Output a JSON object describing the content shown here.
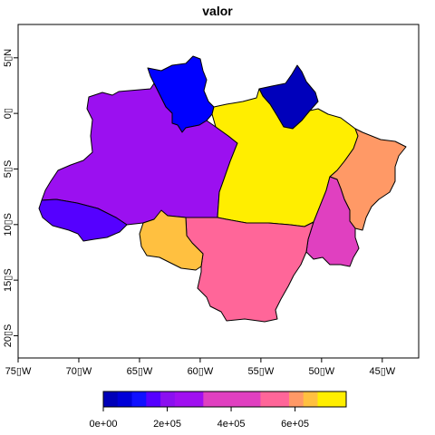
{
  "title": "valor",
  "colors": {
    "plot_border": "#000000",
    "background": "#ffffff"
  },
  "x_ticks": [
    {
      "value": -75,
      "label": "75▯W"
    },
    {
      "value": -70,
      "label": "70▯W"
    },
    {
      "value": -65,
      "label": "65▯W"
    },
    {
      "value": -60,
      "label": "60▯W"
    },
    {
      "value": -55,
      "label": "55▯W"
    },
    {
      "value": -50,
      "label": "50▯W"
    },
    {
      "value": -45,
      "label": "45▯W"
    }
  ],
  "y_ticks": [
    {
      "value": 5,
      "label": "5▯N"
    },
    {
      "value": 0,
      "label": "0▯"
    },
    {
      "value": -5,
      "label": "5▯S"
    },
    {
      "value": -10,
      "label": "10▯S"
    },
    {
      "value": -15,
      "label": "15▯S"
    },
    {
      "value": -20,
      "label": "20▯S"
    }
  ],
  "xlim": [
    -75,
    -42
  ],
  "ylim": [
    -22,
    8
  ],
  "states": [
    {
      "id": "roraima",
      "color": "#0000ff"
    },
    {
      "id": "amapa",
      "color": "#0000bb"
    },
    {
      "id": "amazonas",
      "color": "#9b10f0"
    },
    {
      "id": "para",
      "color": "#ffee00"
    },
    {
      "id": "maranhao",
      "color": "#ff9966"
    },
    {
      "id": "tocantins",
      "color": "#e040c0"
    },
    {
      "id": "mato_grosso",
      "color": "#ff6699"
    },
    {
      "id": "rondonia",
      "color": "#ffc040"
    },
    {
      "id": "acre",
      "color": "#5500ff"
    }
  ],
  "colorbar": {
    "segments": [
      "#0000b8",
      "#0000d8",
      "#1010ff",
      "#5500ff",
      "#8b10f0",
      "#a010f0",
      "#a010f0",
      "#e040c0",
      "#e040c0",
      "#e040c0",
      "#e040c0",
      "#ff6699",
      "#ff6699",
      "#ff9966",
      "#ffc040",
      "#ffee00",
      "#ffee00"
    ],
    "ticks": [
      {
        "value": 0,
        "label": "0e+00"
      },
      {
        "value": 200000,
        "label": "2e+05"
      },
      {
        "value": 400000,
        "label": "4e+05"
      },
      {
        "value": 600000,
        "label": "6e+05"
      }
    ],
    "range": [
      0,
      760000
    ]
  }
}
